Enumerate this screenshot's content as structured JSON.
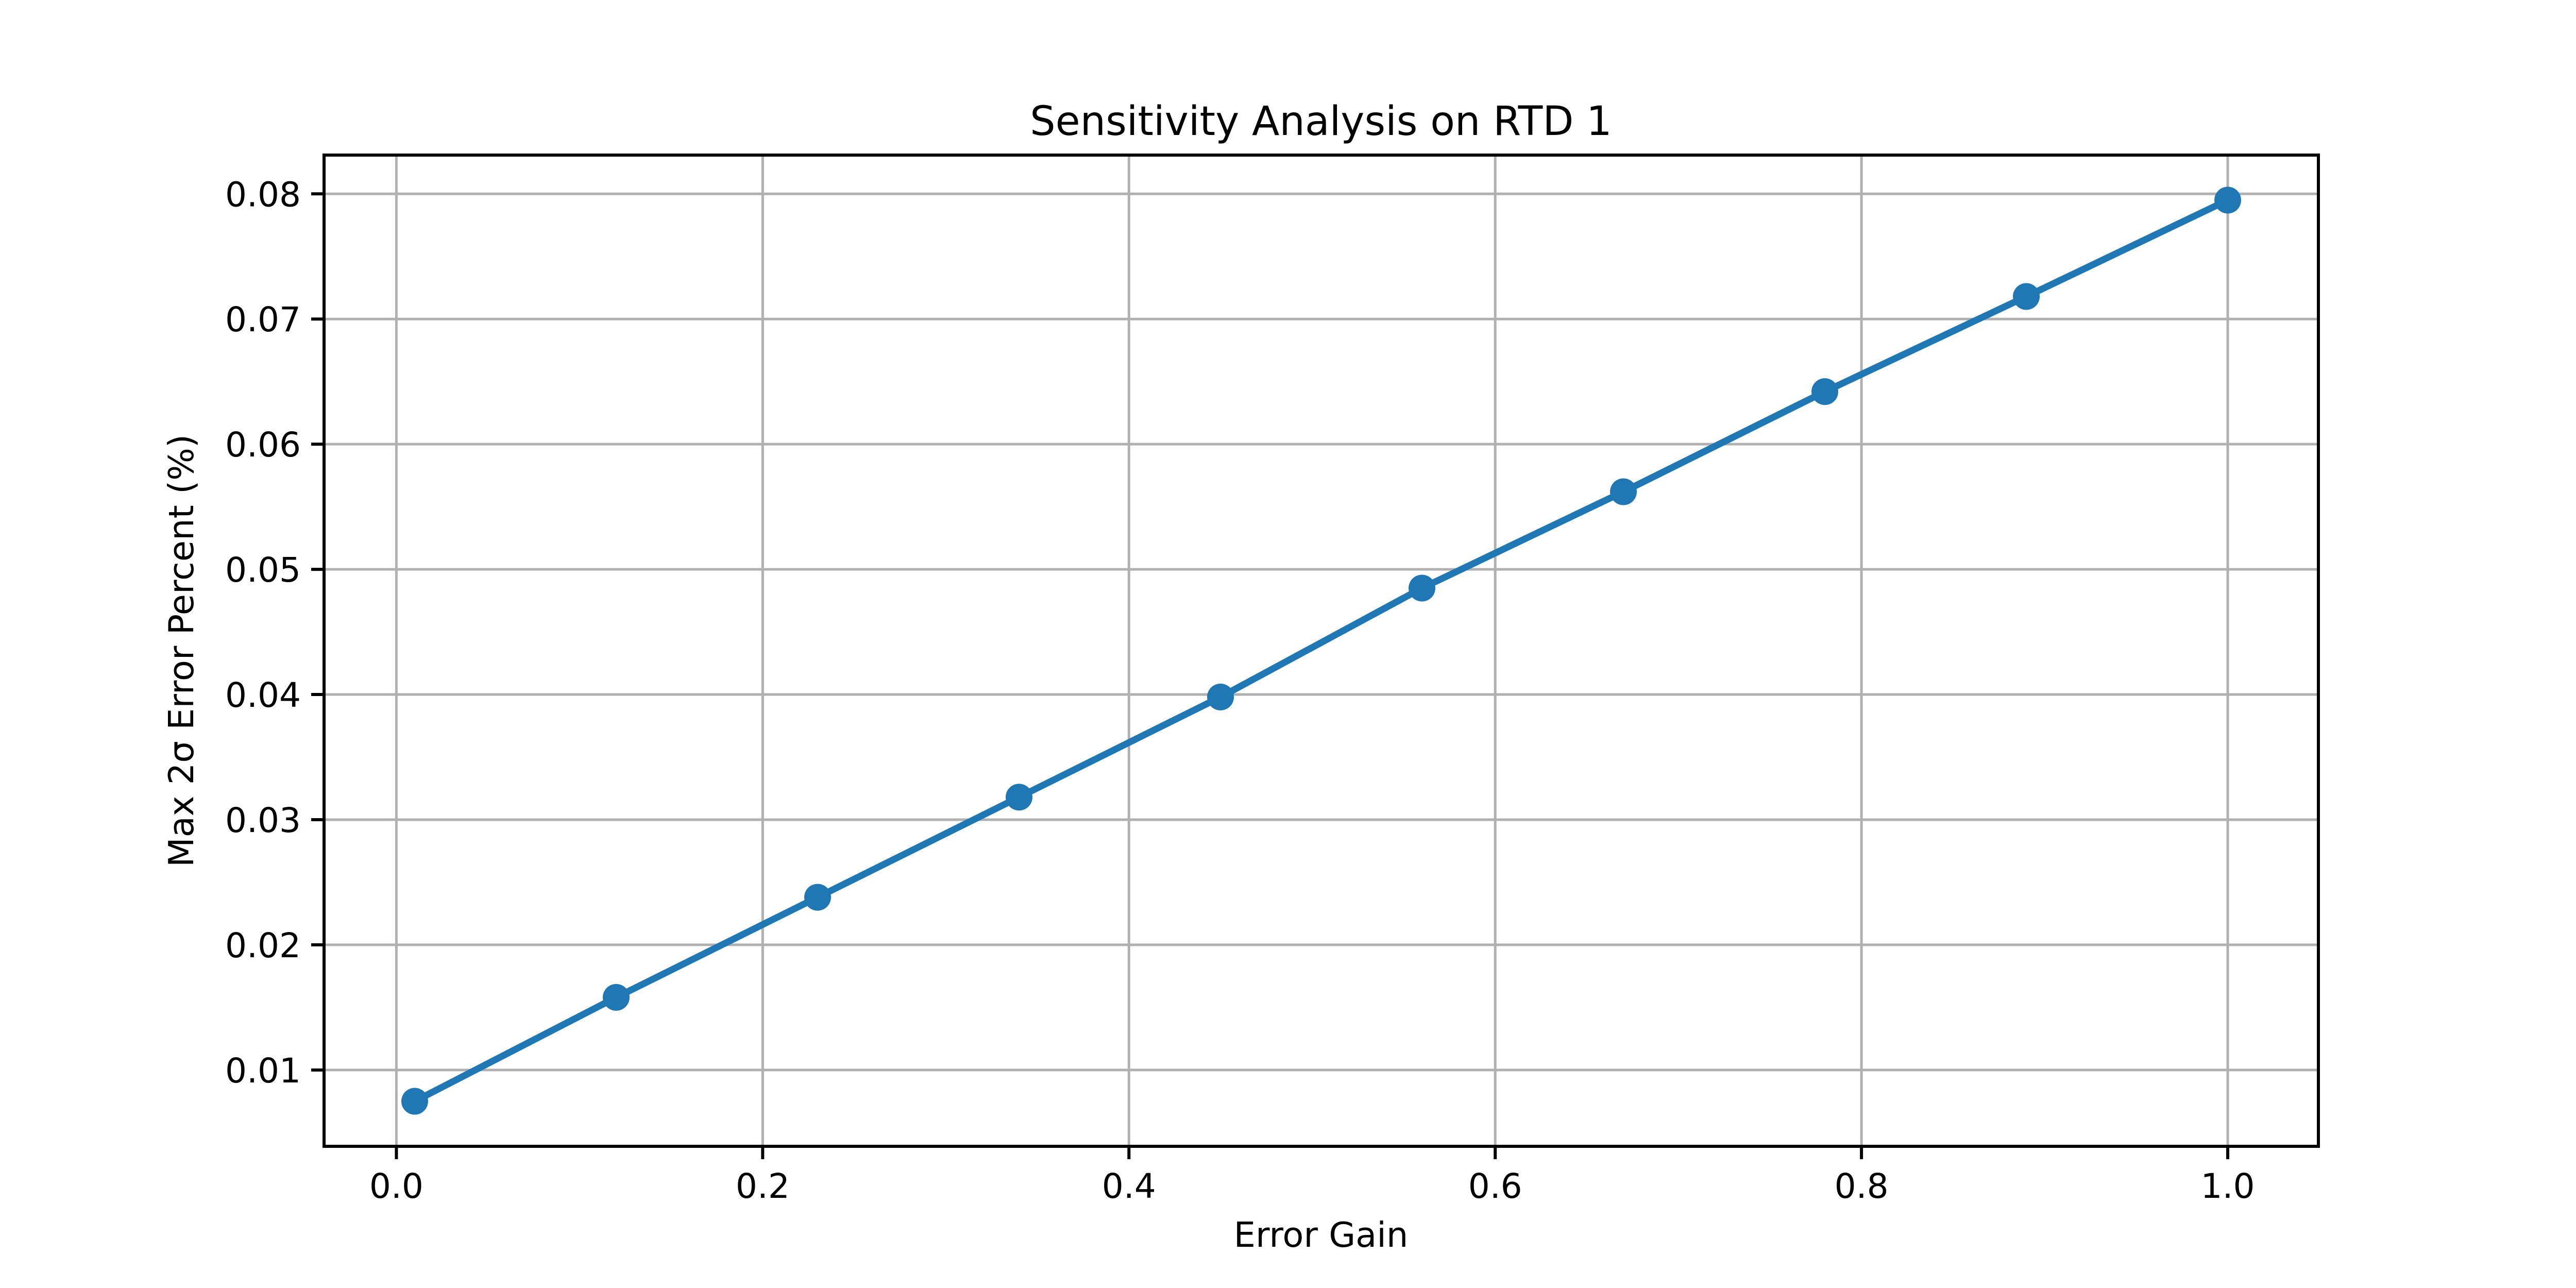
{
  "chart_data": {
    "type": "line",
    "title": "Sensitivity Analysis on RTD 1",
    "xlabel": "Error Gain",
    "ylabel": "Max 2σ Error Percent (%)",
    "x": [
      0.01,
      0.12,
      0.23,
      0.34,
      0.45,
      0.56,
      0.67,
      0.78,
      0.89,
      1.0
    ],
    "y": [
      0.0075,
      0.0158,
      0.0238,
      0.0318,
      0.0398,
      0.0485,
      0.0562,
      0.0642,
      0.0718,
      0.0795
    ],
    "xticks": [
      0.0,
      0.2,
      0.4,
      0.6,
      0.8,
      1.0
    ],
    "xtick_labels": [
      "0.0",
      "0.2",
      "0.4",
      "0.6",
      "0.8",
      "1.0"
    ],
    "yticks": [
      0.01,
      0.02,
      0.03,
      0.04,
      0.05,
      0.06,
      0.07,
      0.08
    ],
    "ytick_labels": [
      "0.01",
      "0.02",
      "0.03",
      "0.04",
      "0.05",
      "0.06",
      "0.07",
      "0.08"
    ],
    "xlim": [
      -0.0395,
      1.0495
    ],
    "ylim": [
      0.0039,
      0.0831
    ],
    "grid": true,
    "legend": "none",
    "marker": "o",
    "line_color": "#1f77b4",
    "marker_color": "#1f77b4",
    "grid_color": "#b0b0b0",
    "spine_color": "#000000",
    "background_color": "#ffffff"
  }
}
